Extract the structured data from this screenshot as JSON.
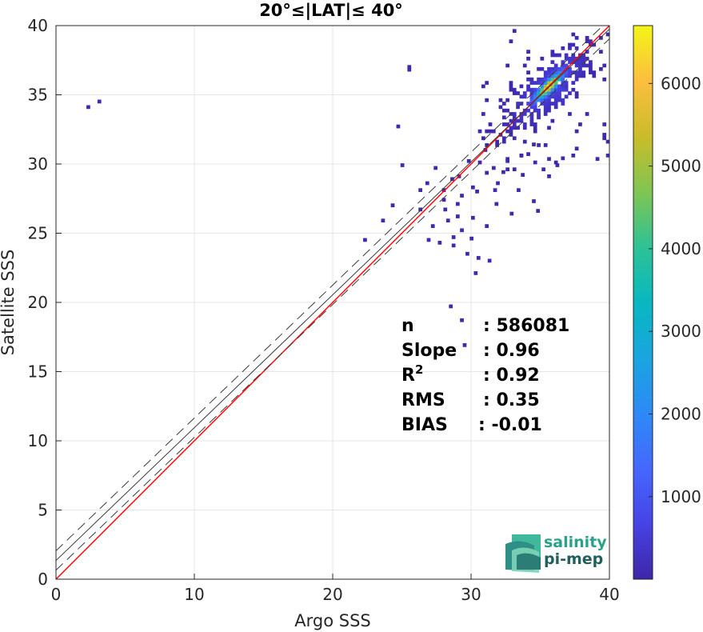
{
  "chart_data": {
    "type": "heatmap",
    "title": "20°≤|LAT|≤ 40°",
    "xlabel": "Argo SSS",
    "ylabel": "Satellite SSS",
    "xlim": [
      0,
      40
    ],
    "ylim": [
      0,
      40
    ],
    "xticks": [
      "0",
      "10",
      "20",
      "30",
      "40"
    ],
    "yticks": [
      "0",
      "5",
      "10",
      "15",
      "20",
      "25",
      "30",
      "35",
      "40"
    ],
    "grid": true,
    "colorbar": {
      "range": [
        1,
        6700
      ],
      "ticks": [
        "1000",
        "2000",
        "3000",
        "4000",
        "5000",
        "6000"
      ],
      "tick_values": [
        1000,
        2000,
        3000,
        4000,
        5000,
        6000
      ],
      "colormap": "parula"
    },
    "density_peak": {
      "x": 35.5,
      "y": 35.5,
      "count": 6700
    },
    "lines": [
      {
        "name": "1:1",
        "color": "#ff0000",
        "style": "solid",
        "slope": 1.0,
        "intercept": 0.0
      },
      {
        "name": "fit",
        "color": "#3a3a3a",
        "style": "solid",
        "slope": 0.96,
        "intercept": 1.35
      },
      {
        "name": "fit + 2 std",
        "color": "#3a3a3a",
        "style": "dashed",
        "slope": 0.96,
        "intercept": 2.05
      },
      {
        "name": "fit - 2 std",
        "color": "#3a3a3a",
        "style": "dashed",
        "slope": 0.96,
        "intercept": 0.65
      }
    ],
    "stats": [
      {
        "label": "n",
        "sup": "",
        "value": ": 586081"
      },
      {
        "label": "Slope",
        "sup": "",
        "value": ": 0.96"
      },
      {
        "label": "R",
        "sup": "2",
        "value": ": 0.92"
      },
      {
        "label": "RMS",
        "sup": "",
        "value": ": 0.35"
      },
      {
        "label": "BIAS",
        "sup": "",
        "value": ": -0.01"
      }
    ],
    "outliers": [
      [
        2.2,
        34.0
      ],
      [
        3.0,
        34.4
      ],
      [
        25.4,
        36.7
      ],
      [
        25.4,
        36.9
      ],
      [
        24.6,
        32.6
      ],
      [
        24.9,
        29.8
      ],
      [
        26.7,
        28.5
      ],
      [
        26.2,
        28.0
      ],
      [
        27.3,
        29.6
      ],
      [
        27.9,
        27.3
      ],
      [
        28.5,
        28.8
      ],
      [
        28.9,
        27.0
      ],
      [
        29.2,
        27.6
      ],
      [
        28.2,
        25.8
      ],
      [
        27.1,
        25.4
      ],
      [
        28.6,
        24.6
      ],
      [
        29.2,
        25.1
      ],
      [
        30.0,
        26.0
      ],
      [
        29.6,
        23.4
      ],
      [
        28.6,
        24.0
      ],
      [
        30.4,
        23.1
      ],
      [
        31.2,
        22.9
      ],
      [
        30.3,
        27.9
      ],
      [
        31.8,
        28.5
      ],
      [
        31.5,
        29.6
      ],
      [
        32.5,
        30.1
      ],
      [
        33.3,
        28.0
      ],
      [
        34.4,
        27.2
      ],
      [
        34.7,
        26.5
      ],
      [
        33.6,
        29.1
      ],
      [
        35.1,
        29.5
      ],
      [
        34.0,
        30.6
      ],
      [
        28.4,
        19.6
      ],
      [
        29.2,
        18.6
      ],
      [
        30.2,
        22.0
      ],
      [
        29.0,
        29.0
      ],
      [
        30.0,
        28.2
      ],
      [
        28.0,
        26.6
      ],
      [
        26.8,
        24.4
      ],
      [
        27.6,
        24.2
      ],
      [
        28.9,
        26.1
      ],
      [
        29.9,
        24.5
      ],
      [
        31.0,
        25.4
      ],
      [
        31.7,
        27.0
      ],
      [
        32.8,
        26.3
      ],
      [
        22.2,
        24.4
      ],
      [
        23.5,
        25.8
      ],
      [
        24.2,
        26.9
      ],
      [
        26.2,
        26.6
      ],
      [
        27.9,
        28.0
      ],
      [
        29.7,
        30.1
      ],
      [
        30.9,
        30.9
      ],
      [
        31.6,
        28.0
      ],
      [
        32.2,
        29.3
      ],
      [
        33.5,
        30.5
      ],
      [
        34.4,
        31.3
      ],
      [
        36.1,
        29.8
      ],
      [
        36.5,
        30.3
      ],
      [
        29.4,
        16.8
      ]
    ]
  },
  "logo": {
    "line1": "salinity",
    "line2": "pi-mep"
  }
}
